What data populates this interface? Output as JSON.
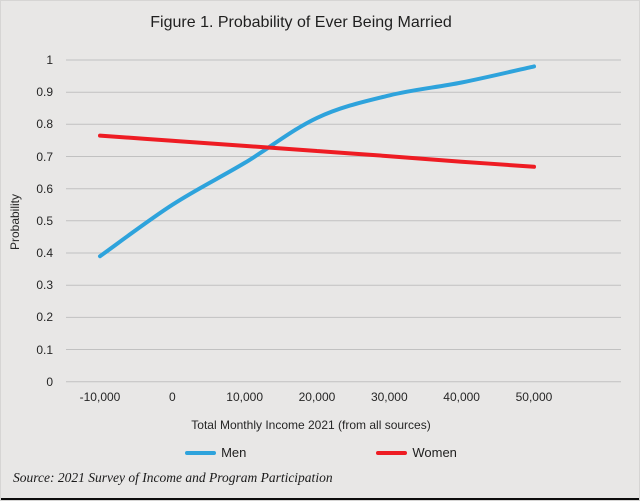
{
  "title": "Figure 1. Probability of Ever Being Married",
  "source_note": "Source: 2021 Survey of Income and Program Participation",
  "colors": {
    "background": "#e8e7e6",
    "gridline": "#c1c1c1",
    "men_line": "#2ea3dc",
    "women_line": "#ee1c23",
    "text": "#262626"
  },
  "chart_data": {
    "type": "line",
    "title": "Figure 1. Probability of Ever Being Married",
    "xlabel": "Total Monthly Income 2021 (from all sources)",
    "ylabel": "Probability",
    "x": [
      -10000,
      0,
      10000,
      20000,
      30000,
      40000,
      50000
    ],
    "x_tick_labels": [
      "-10,000",
      "0",
      "10,000",
      "20,000",
      "30,000",
      "40,000",
      "50,000"
    ],
    "y_ticks": [
      0,
      0.1,
      0.2,
      0.3,
      0.4,
      0.5,
      0.6,
      0.7,
      0.8,
      0.9,
      1
    ],
    "y_tick_labels": [
      "0",
      "0.1",
      "0.2",
      "0.3",
      "0.4",
      "0.5",
      "0.6",
      "0.7",
      "0.8",
      "0.9",
      "1"
    ],
    "ylim": [
      0,
      1
    ],
    "grid": "horizontal",
    "legend_position": "bottom",
    "series": [
      {
        "name": "Men",
        "color": "#2ea3dc",
        "smooth": true,
        "values": [
          0.39,
          0.55,
          0.68,
          0.82,
          0.89,
          0.93,
          0.98
        ]
      },
      {
        "name": "Women",
        "color": "#ee1c23",
        "smooth": true,
        "values": [
          0.765,
          0.749,
          0.733,
          0.717,
          0.701,
          0.684,
          0.668
        ]
      }
    ]
  }
}
